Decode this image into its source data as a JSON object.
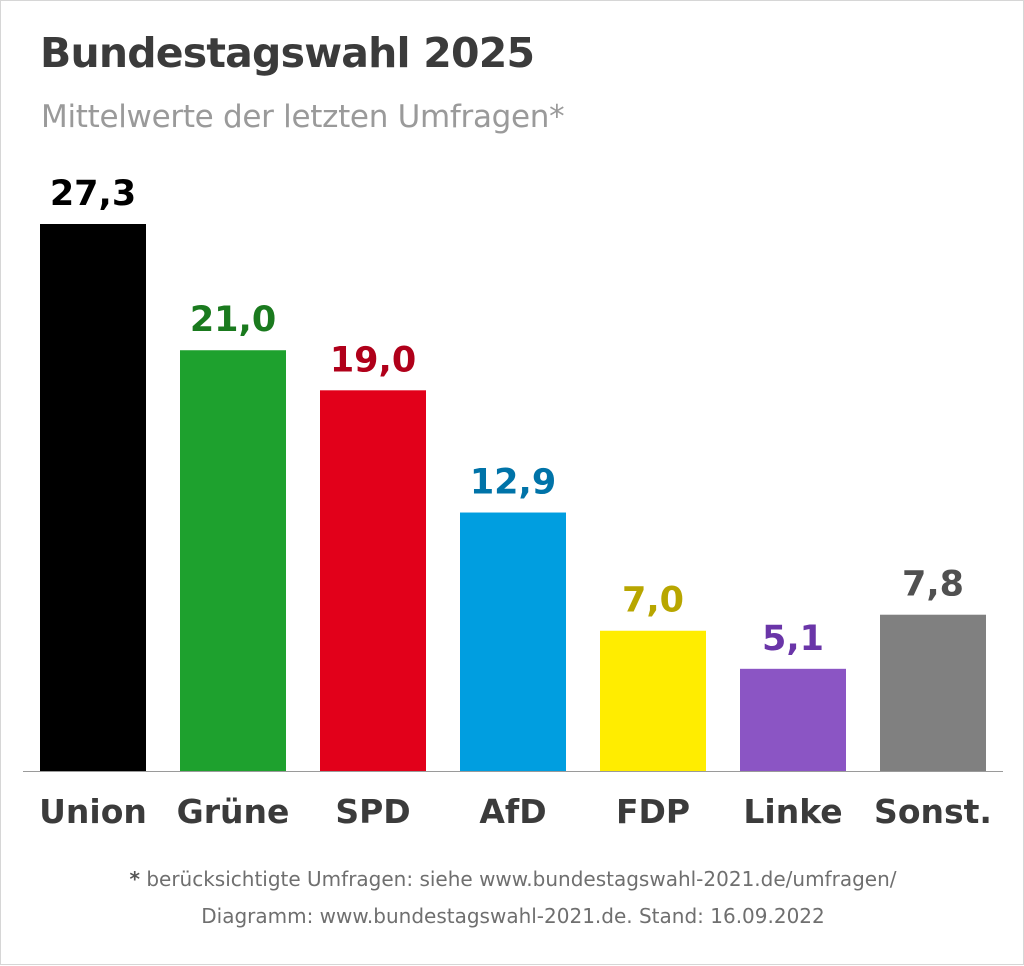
{
  "chart_data": {
    "type": "bar",
    "title": "Bundestagswahl 2025",
    "subtitle": "Mittelwerte der letzten Umfragen*",
    "categories": [
      "Union",
      "Grüne",
      "SPD",
      "AfD",
      "FDP",
      "Linke",
      "Sonst."
    ],
    "values": [
      27.3,
      21.0,
      19.0,
      12.9,
      7.0,
      5.1,
      7.8
    ],
    "value_labels": [
      "27,3",
      "21,0",
      "19,0",
      "12,9",
      "7,0",
      "5,1",
      "7,8"
    ],
    "bar_colors": [
      "#000000",
      "#1ea12e",
      "#e2001a",
      "#009ee0",
      "#ffed00",
      "#8b55c4",
      "#808080"
    ],
    "label_colors": [
      "#000000",
      "#1a7a1e",
      "#b0001a",
      "#0073a8",
      "#b8a600",
      "#6a35a8",
      "#505050"
    ],
    "xlabel": "",
    "ylabel": "",
    "ylim": [
      0,
      27.3
    ],
    "grid": false,
    "legend": "none"
  },
  "footnotes": {
    "star": "*",
    "line1": "berücksichtigte Umfragen: siehe www.bundestagswahl-2021.de/umfragen/",
    "line2": "Diagramm: www.bundestagswahl-2021.de. Stand: 16.09.2022"
  }
}
